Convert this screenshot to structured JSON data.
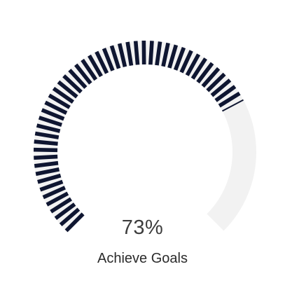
{
  "chart_data": {
    "type": "gauge",
    "value": 73,
    "min": 0,
    "max": 100,
    "value_label": "73%",
    "label": "Achieve Goals",
    "colors": {
      "filled": "#0f1631",
      "track": "#f2f2f2",
      "background": "#ffffff"
    }
  }
}
